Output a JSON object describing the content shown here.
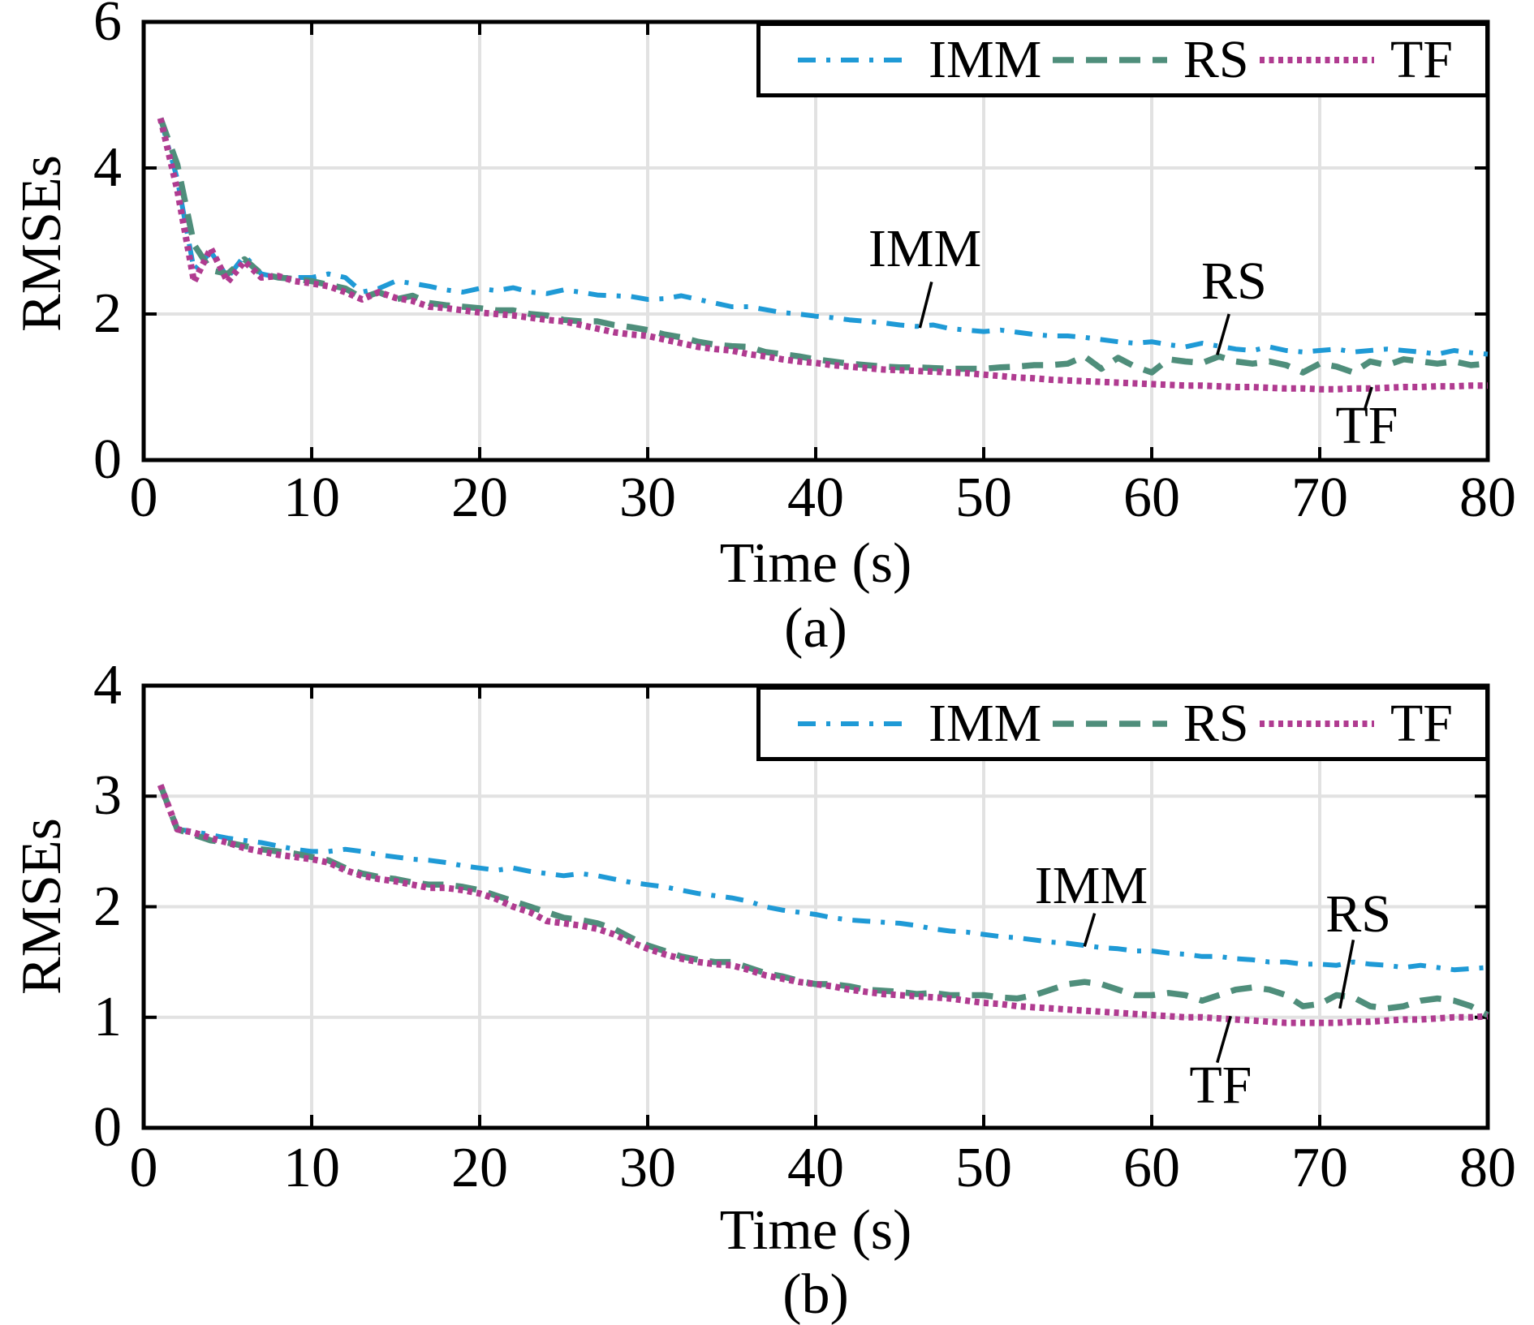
{
  "figure_title": "",
  "colors": {
    "imm": "#1f9ad6",
    "rs": "#4f8e7b",
    "tf": "#b03b90",
    "grid": "#e2e2e2",
    "axis": "#000000",
    "background": "#ffffff"
  },
  "legend": {
    "entries": [
      "IMM",
      "RS",
      "TF"
    ],
    "position": "top-right-inside"
  },
  "chart_data": [
    {
      "panel": "a",
      "type": "line",
      "caption": "(a)",
      "xlabel": "Time (s)",
      "ylabel": "RMSEs",
      "xlim": [
        0,
        80
      ],
      "ylim": [
        0,
        6
      ],
      "xticks": [
        0,
        10,
        20,
        30,
        40,
        50,
        60,
        70,
        80
      ],
      "yticks": [
        0,
        2,
        4,
        6
      ],
      "grid": true,
      "x_first": 1,
      "x_step": 1,
      "series": [
        {
          "name": "IMM",
          "color": "#1f9ad6",
          "style": "dash-dot",
          "values": [
            4.68,
            3.85,
            2.6,
            2.85,
            2.5,
            2.8,
            2.55,
            2.5,
            2.5,
            2.5,
            2.55,
            2.5,
            2.3,
            2.35,
            2.45,
            2.42,
            2.38,
            2.33,
            2.3,
            2.35,
            2.32,
            2.36,
            2.3,
            2.28,
            2.33,
            2.3,
            2.26,
            2.25,
            2.24,
            2.2,
            2.21,
            2.25,
            2.2,
            2.15,
            2.1,
            2.1,
            2.06,
            2.02,
            2.0,
            1.97,
            1.95,
            1.92,
            1.9,
            1.88,
            1.85,
            1.83,
            1.85,
            1.8,
            1.78,
            1.76,
            1.78,
            1.75,
            1.72,
            1.7,
            1.7,
            1.68,
            1.65,
            1.62,
            1.6,
            1.62,
            1.58,
            1.55,
            1.6,
            1.56,
            1.52,
            1.5,
            1.55,
            1.5,
            1.48,
            1.5,
            1.52,
            1.48,
            1.5,
            1.52,
            1.5,
            1.48,
            1.45,
            1.5,
            1.47,
            1.45
          ]
        },
        {
          "name": "RS",
          "color": "#4f8e7b",
          "style": "dashed",
          "values": [
            4.68,
            4.05,
            2.95,
            2.6,
            2.55,
            2.75,
            2.55,
            2.5,
            2.48,
            2.45,
            2.4,
            2.35,
            2.22,
            2.3,
            2.2,
            2.25,
            2.15,
            2.12,
            2.1,
            2.08,
            2.05,
            2.05,
            2.0,
            1.98,
            1.92,
            1.9,
            1.9,
            1.85,
            1.82,
            1.78,
            1.72,
            1.68,
            1.62,
            1.58,
            1.56,
            1.55,
            1.48,
            1.45,
            1.42,
            1.38,
            1.35,
            1.32,
            1.3,
            1.28,
            1.27,
            1.27,
            1.26,
            1.25,
            1.25,
            1.25,
            1.27,
            1.28,
            1.3,
            1.3,
            1.32,
            1.42,
            1.25,
            1.4,
            1.28,
            1.2,
            1.38,
            1.35,
            1.33,
            1.42,
            1.35,
            1.32,
            1.35,
            1.3,
            1.2,
            1.32,
            1.28,
            1.2,
            1.35,
            1.3,
            1.38,
            1.35,
            1.32,
            1.35,
            1.3,
            1.32
          ]
        },
        {
          "name": "TF",
          "color": "#b03b90",
          "style": "dotted",
          "values": [
            4.68,
            3.7,
            2.44,
            2.9,
            2.44,
            2.72,
            2.5,
            2.52,
            2.45,
            2.42,
            2.38,
            2.3,
            2.2,
            2.3,
            2.22,
            2.18,
            2.1,
            2.08,
            2.05,
            2.02,
            2.0,
            1.98,
            1.95,
            1.92,
            1.9,
            1.85,
            1.8,
            1.75,
            1.72,
            1.7,
            1.65,
            1.6,
            1.55,
            1.52,
            1.5,
            1.45,
            1.42,
            1.38,
            1.35,
            1.33,
            1.3,
            1.28,
            1.26,
            1.24,
            1.23,
            1.22,
            1.21,
            1.2,
            1.19,
            1.17,
            1.15,
            1.13,
            1.12,
            1.1,
            1.09,
            1.08,
            1.07,
            1.06,
            1.05,
            1.04,
            1.03,
            1.02,
            1.02,
            1.01,
            1.0,
            1.0,
            0.99,
            0.98,
            0.98,
            0.97,
            0.97,
            0.98,
            0.98,
            0.99,
            1.0,
            1.0,
            1.01,
            1.01,
            1.02,
            1.02
          ]
        }
      ],
      "annotations": [
        {
          "label": "IMM",
          "text_at": {
            "t": 46.5,
            "value": 2.89
          },
          "leader": {
            "from": {
              "t": 46.9,
              "value": 2.44
            },
            "to": {
              "t": 46.2,
              "value": 1.81
            }
          }
        },
        {
          "label": "RS",
          "text_at": {
            "t": 64.9,
            "value": 2.44
          },
          "leader": {
            "from": {
              "t": 64.6,
              "value": 2.0
            },
            "to": {
              "t": 63.9,
              "value": 1.44
            }
          }
        },
        {
          "label": "TF",
          "text_at": {
            "t": 72.8,
            "value": 0.47
          },
          "leader": {
            "from": {
              "t": 73.1,
              "value": 1.0
            },
            "to": {
              "t": 72.7,
              "value": 0.71
            }
          }
        }
      ]
    },
    {
      "panel": "b",
      "type": "line",
      "caption": "(b)",
      "xlabel": "Time (s)",
      "ylabel": "RMSEs",
      "xlim": [
        0,
        80
      ],
      "ylim": [
        0,
        4
      ],
      "xticks": [
        0,
        10,
        20,
        30,
        40,
        50,
        60,
        70,
        80
      ],
      "yticks": [
        0,
        1,
        2,
        3,
        4
      ],
      "grid": true,
      "x_first": 1,
      "x_step": 1,
      "series": [
        {
          "name": "IMM",
          "color": "#1f9ad6",
          "style": "dash-dot",
          "values": [
            3.1,
            2.7,
            2.68,
            2.65,
            2.62,
            2.6,
            2.58,
            2.55,
            2.52,
            2.5,
            2.5,
            2.52,
            2.5,
            2.47,
            2.45,
            2.43,
            2.42,
            2.4,
            2.37,
            2.35,
            2.33,
            2.35,
            2.32,
            2.3,
            2.28,
            2.3,
            2.28,
            2.25,
            2.22,
            2.2,
            2.18,
            2.15,
            2.12,
            2.1,
            2.08,
            2.05,
            2.0,
            1.97,
            1.95,
            1.93,
            1.9,
            1.88,
            1.87,
            1.86,
            1.85,
            1.83,
            1.8,
            1.78,
            1.77,
            1.75,
            1.73,
            1.72,
            1.7,
            1.68,
            1.67,
            1.65,
            1.63,
            1.62,
            1.6,
            1.6,
            1.58,
            1.57,
            1.55,
            1.55,
            1.53,
            1.52,
            1.5,
            1.5,
            1.48,
            1.48,
            1.47,
            1.5,
            1.48,
            1.47,
            1.45,
            1.47,
            1.45,
            1.43,
            1.44,
            1.45
          ]
        },
        {
          "name": "RS",
          "color": "#4f8e7b",
          "style": "dashed",
          "values": [
            3.1,
            2.7,
            2.65,
            2.6,
            2.58,
            2.55,
            2.52,
            2.5,
            2.48,
            2.45,
            2.42,
            2.35,
            2.3,
            2.27,
            2.25,
            2.22,
            2.2,
            2.2,
            2.18,
            2.15,
            2.1,
            2.05,
            2.0,
            1.95,
            1.9,
            1.88,
            1.85,
            1.8,
            1.72,
            1.65,
            1.6,
            1.55,
            1.52,
            1.5,
            1.5,
            1.45,
            1.4,
            1.37,
            1.33,
            1.3,
            1.3,
            1.28,
            1.25,
            1.24,
            1.23,
            1.21,
            1.22,
            1.2,
            1.2,
            1.2,
            1.18,
            1.17,
            1.2,
            1.25,
            1.3,
            1.32,
            1.3,
            1.25,
            1.2,
            1.2,
            1.22,
            1.2,
            1.15,
            1.2,
            1.25,
            1.27,
            1.25,
            1.2,
            1.1,
            1.12,
            1.2,
            1.18,
            1.1,
            1.08,
            1.1,
            1.15,
            1.17,
            1.15,
            1.1,
            1.02
          ]
        },
        {
          "name": "TF",
          "color": "#b03b90",
          "style": "dotted",
          "values": [
            3.1,
            2.7,
            2.67,
            2.62,
            2.58,
            2.53,
            2.5,
            2.47,
            2.45,
            2.43,
            2.4,
            2.33,
            2.28,
            2.25,
            2.23,
            2.2,
            2.17,
            2.17,
            2.15,
            2.12,
            2.07,
            2.0,
            1.95,
            1.87,
            1.85,
            1.83,
            1.8,
            1.75,
            1.68,
            1.62,
            1.57,
            1.53,
            1.5,
            1.48,
            1.47,
            1.43,
            1.38,
            1.35,
            1.32,
            1.3,
            1.28,
            1.25,
            1.23,
            1.21,
            1.2,
            1.19,
            1.18,
            1.17,
            1.15,
            1.13,
            1.12,
            1.1,
            1.09,
            1.08,
            1.07,
            1.06,
            1.05,
            1.04,
            1.03,
            1.02,
            1.01,
            1.0,
            1.0,
            0.99,
            0.98,
            0.97,
            0.96,
            0.95,
            0.95,
            0.95,
            0.95,
            0.96,
            0.96,
            0.97,
            0.98,
            0.98,
            0.99,
            1.0,
            1.0,
            1.01
          ]
        }
      ],
      "annotations": [
        {
          "label": "IMM",
          "text_at": {
            "t": 56.4,
            "value": 2.19
          },
          "leader": {
            "from": {
              "t": 56.6,
              "value": 1.94
            },
            "to": {
              "t": 56.0,
              "value": 1.64
            }
          }
        },
        {
          "label": "RS",
          "text_at": {
            "t": 72.3,
            "value": 1.93
          },
          "leader": {
            "from": {
              "t": 72.0,
              "value": 1.7
            },
            "to": {
              "t": 71.2,
              "value": 1.08
            }
          }
        },
        {
          "label": "TF",
          "text_at": {
            "t": 64.1,
            "value": 0.38
          },
          "leader": {
            "from": {
              "t": 64.7,
              "value": 1.01
            },
            "to": {
              "t": 63.9,
              "value": 0.59
            }
          }
        }
      ]
    }
  ]
}
